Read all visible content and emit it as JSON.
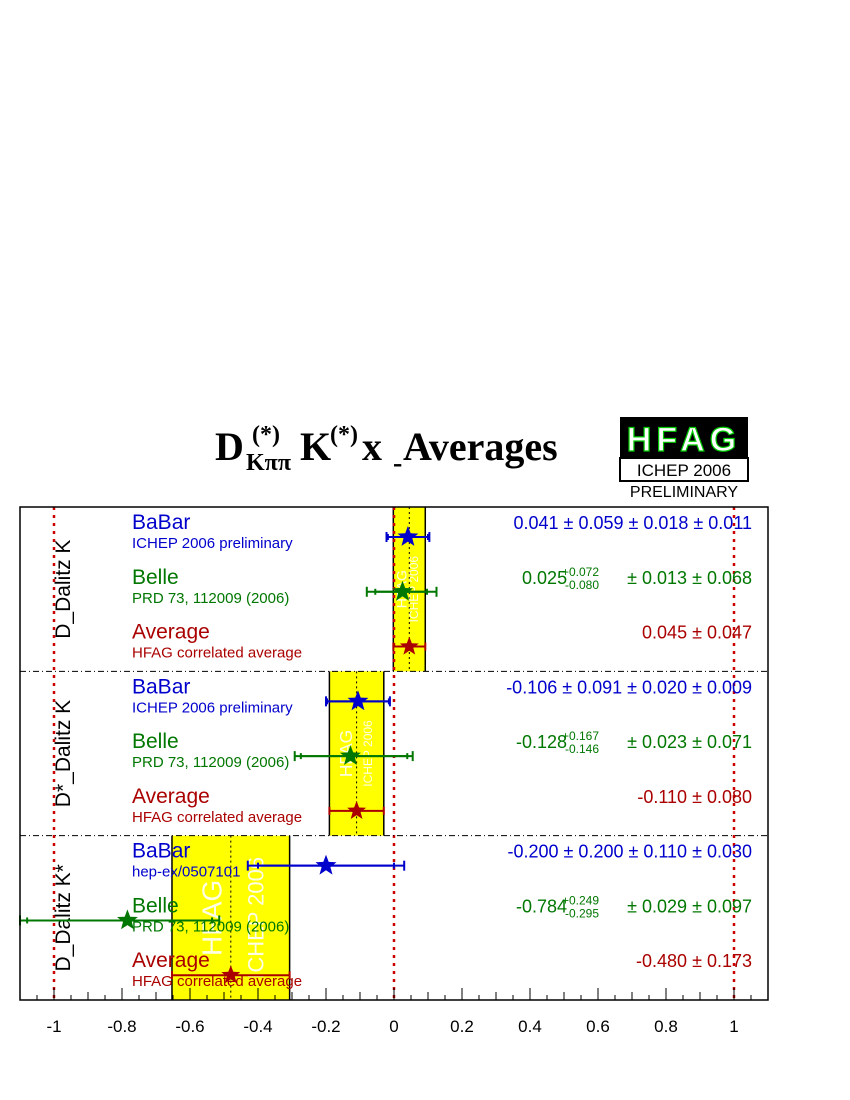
{
  "header": {
    "title_main": "D",
    "title_sup1": "(*)",
    "title_sub1": "Kππ",
    "title_k": "K",
    "title_sup2": "(*)",
    "title_x": " x",
    "title_xsub": "-",
    "title_rest": " Averages"
  },
  "logo": {
    "name": "HFAG",
    "conference": "ICHEP 2006",
    "status": "PRELIMINARY"
  },
  "colors": {
    "babar": "#0000cc",
    "belle": "#007700",
    "average": "#aa0000",
    "band": "#ffff00",
    "reference_line": "#cc0000"
  },
  "chart_data": {
    "type": "scatter",
    "title": "D(*)Kππ K(*) x- Averages",
    "xlim": [
      -1.1,
      1.1
    ],
    "x_ticks": [
      "-1",
      "-0.8",
      "-0.6",
      "-0.4",
      "-0.2",
      "0",
      "0.2",
      "0.4",
      "0.6",
      "0.8",
      "1"
    ],
    "x_tick_values": [
      -1,
      -0.8,
      -0.6,
      -0.4,
      -0.2,
      0,
      0.2,
      0.4,
      0.6,
      0.8,
      1
    ],
    "reference_lines": [
      -1,
      0,
      1
    ],
    "band_label": "HFAG",
    "band_sublabel": "ICHEP 2006",
    "panels": [
      {
        "label": "D_Dalitz K",
        "band": [
          -0.002,
          0.092
        ],
        "band_center": 0.045,
        "entries": [
          {
            "source": "BaBar",
            "ref": "ICHEP 2006 preliminary",
            "kind": "babar",
            "value_text": "0.041 ± 0.059 ± 0.018 ± 0.011",
            "central": 0.041,
            "stat_low": 0.059,
            "stat_high": 0.059,
            "tot_low": 0.063,
            "tot_high": 0.063
          },
          {
            "source": "Belle",
            "ref": "PRD 73, 112009 (2006)",
            "kind": "belle",
            "val": "0.025",
            "up": "+0.072",
            "down": "-0.080",
            "rest": "± 0.013 ± 0.068",
            "central": 0.025,
            "stat_low": 0.08,
            "stat_high": 0.072,
            "tot_low": 0.105,
            "tot_high": 0.1
          },
          {
            "source": "Average",
            "ref": "HFAG correlated average",
            "kind": "average",
            "value_text": "0.045 ± 0.047",
            "central": 0.045,
            "stat_low": 0.047,
            "stat_high": 0.047,
            "tot_low": 0.047,
            "tot_high": 0.047
          }
        ]
      },
      {
        "label": "D*_Dalitz K",
        "band": [
          -0.19,
          -0.03
        ],
        "band_center": -0.11,
        "entries": [
          {
            "source": "BaBar",
            "ref": "ICHEP 2006 preliminary",
            "kind": "babar",
            "value_text": "-0.106 ± 0.091 ± 0.020 ± 0.009",
            "central": -0.106,
            "stat_low": 0.091,
            "stat_high": 0.091,
            "tot_low": 0.094,
            "tot_high": 0.094
          },
          {
            "source": "Belle",
            "ref": "PRD 73, 112009 (2006)",
            "kind": "belle",
            "val": "-0.128",
            "up": "+0.167",
            "down": "-0.146",
            "rest": "± 0.023 ± 0.071",
            "central": -0.128,
            "stat_low": 0.146,
            "stat_high": 0.167,
            "tot_low": 0.164,
            "tot_high": 0.183
          },
          {
            "source": "Average",
            "ref": "HFAG correlated average",
            "kind": "average",
            "value_text": "-0.110 ± 0.080",
            "central": -0.11,
            "stat_low": 0.08,
            "stat_high": 0.08,
            "tot_low": 0.08,
            "tot_high": 0.08
          }
        ]
      },
      {
        "label": "D_Dalitz K*",
        "band": [
          -0.653,
          -0.307
        ],
        "band_center": -0.48,
        "entries": [
          {
            "source": "BaBar",
            "ref": "hep-ex/0507101",
            "kind": "babar",
            "value_text": "-0.200 ± 0.200 ± 0.110 ± 0.030",
            "central": -0.2,
            "stat_low": 0.2,
            "stat_high": 0.2,
            "tot_low": 0.23,
            "tot_high": 0.23
          },
          {
            "source": "Belle",
            "ref": "PRD 73, 112009 (2006)",
            "kind": "belle",
            "val": "-0.784",
            "up": "+0.249",
            "down": "-0.295",
            "rest": "± 0.029 ± 0.097",
            "central": -0.784,
            "stat_low": 0.295,
            "stat_high": 0.249,
            "tot_low": 0.316,
            "tot_high": 0.27
          },
          {
            "source": "Average",
            "ref": "HFAG correlated average",
            "kind": "average",
            "value_text": "-0.480 ± 0.173",
            "central": -0.48,
            "stat_low": 0.173,
            "stat_high": 0.173,
            "tot_low": 0.173,
            "tot_high": 0.173
          }
        ]
      }
    ]
  }
}
